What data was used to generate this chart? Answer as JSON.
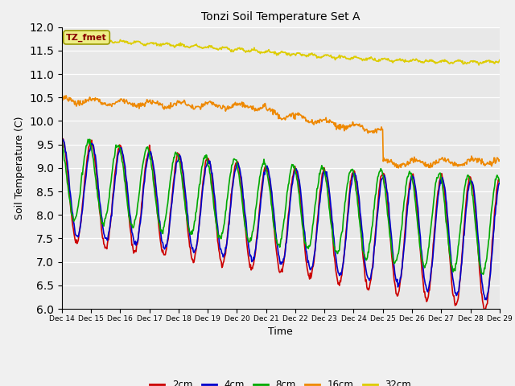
{
  "title": "Tonzi Soil Temperature Set A",
  "xlabel": "Time",
  "ylabel": "Soil Temperature (C)",
  "ylim": [
    6.0,
    12.0
  ],
  "yticks": [
    6.0,
    6.5,
    7.0,
    7.5,
    8.0,
    8.5,
    9.0,
    9.5,
    10.0,
    10.5,
    11.0,
    11.5,
    12.0
  ],
  "background_color": "#f0f0f0",
  "plot_bg_color": "#e8e8e8",
  "series": [
    {
      "label": "2cm",
      "color": "#cc0000",
      "linewidth": 1.2
    },
    {
      "label": "4cm",
      "color": "#0000cc",
      "linewidth": 1.2
    },
    {
      "label": "8cm",
      "color": "#00aa00",
      "linewidth": 1.2
    },
    {
      "label": "16cm",
      "color": "#ee8800",
      "linewidth": 1.2
    },
    {
      "label": "32cm",
      "color": "#ddcc00",
      "linewidth": 1.2
    }
  ],
  "annotation_text": "TZ_fmet",
  "annotation_color": "#880000",
  "annotation_bg": "#eeee88",
  "n_points": 720,
  "x_start": 14,
  "x_end": 29,
  "xtick_positions": [
    14,
    15,
    16,
    17,
    18,
    19,
    20,
    21,
    22,
    23,
    24,
    25,
    26,
    27,
    28,
    29
  ],
  "xtick_labels": [
    "Dec 14",
    "Dec 15",
    "Dec 16",
    "Dec 17",
    "Dec 18",
    "Dec 19",
    "Dec 20",
    "Dec 21",
    "Dec 22",
    "Dec 23",
    "Dec 24",
    "Dec 25",
    "Dec 26",
    "Dec 27",
    "Dec 28",
    "Dec 29"
  ]
}
